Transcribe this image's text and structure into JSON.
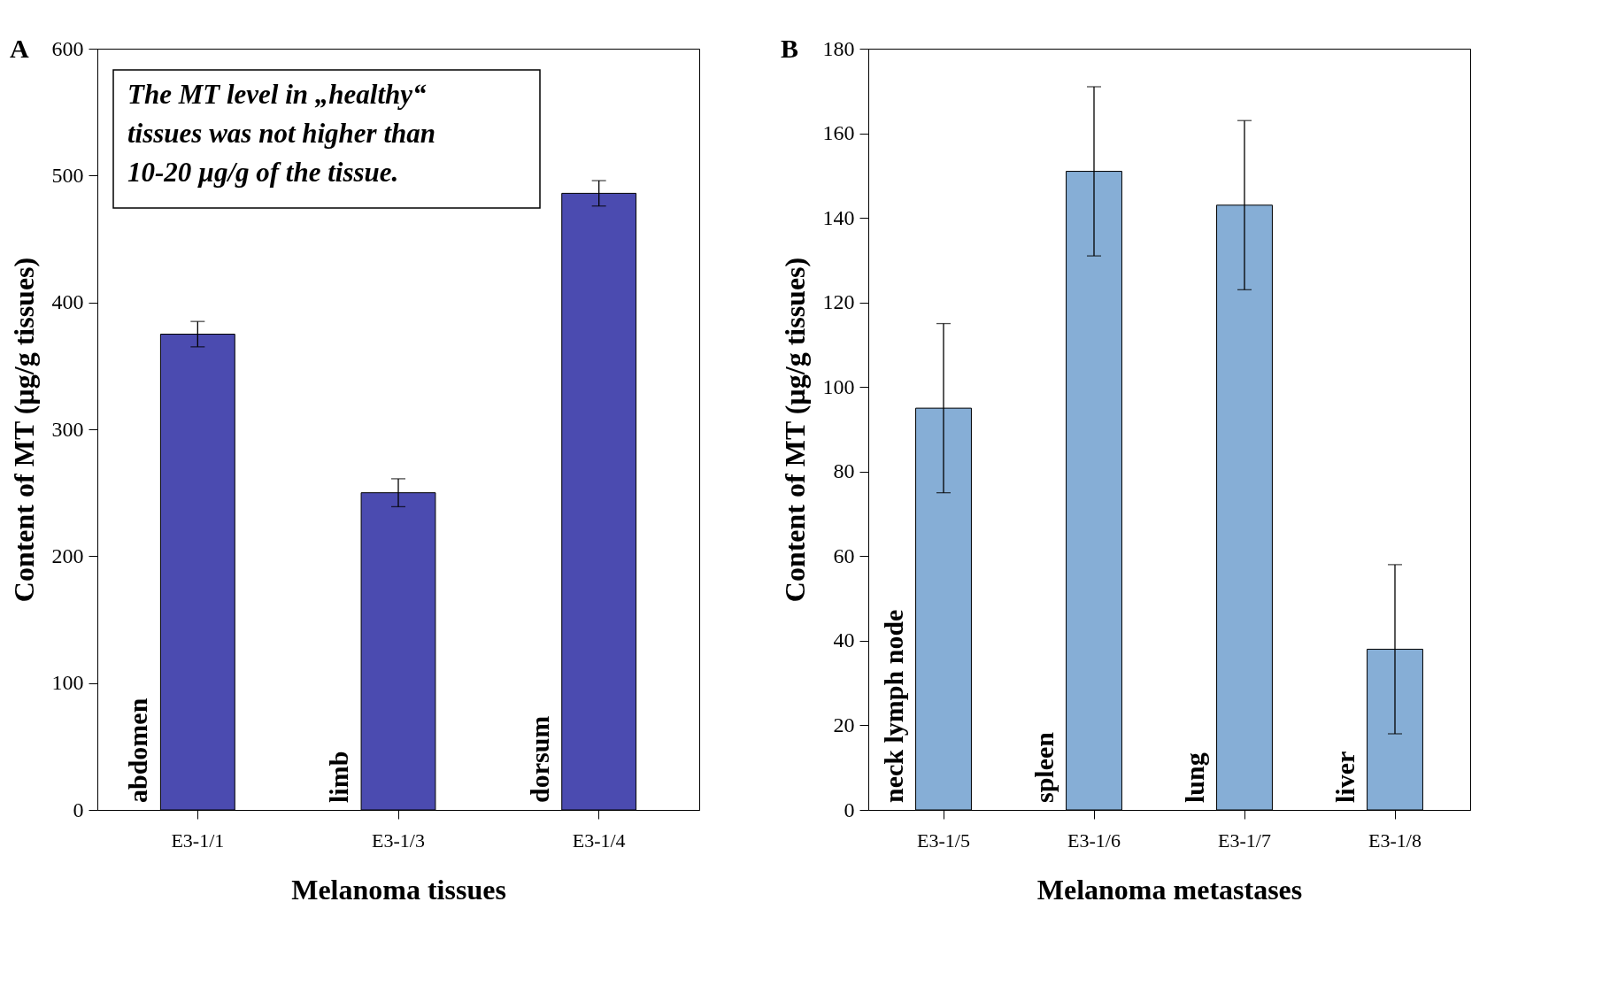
{
  "chart_data": [
    {
      "type": "bar",
      "title": "A",
      "xlabel": "Melanoma tissues",
      "ylabel": "Content of MT (µg/g tissues)",
      "categories": [
        "E3-1/1",
        "E3-1/3",
        "E3-1/4"
      ],
      "values": [
        375,
        250,
        486
      ],
      "errors": [
        10,
        11,
        10
      ],
      "color": "#4b4bb0",
      "ylim": [
        0,
        600
      ],
      "yticks": [
        0,
        100,
        200,
        300,
        400,
        500,
        600
      ],
      "grid": false,
      "annotations": [
        "The MT level in „healthy“\ntissues was not higher than\n10-20 µg/g of the tissue.",
        {
          "text": "abdomen",
          "x": "E3-1/1",
          "y": 0
        },
        {
          "text": "limb",
          "x": "E3-1/3",
          "y": 0
        },
        {
          "text": "dorsum",
          "x": "E3-1/4",
          "y": 0
        }
      ]
    },
    {
      "type": "bar",
      "title": "B",
      "xlabel": "Melanoma metastases",
      "ylabel": "Content of MT (µg/g tissues)",
      "categories": [
        "E3-1/5",
        "E3-1/6",
        "E3-1/7",
        "E3-1/8"
      ],
      "values": [
        95,
        151,
        143,
        38
      ],
      "errors": [
        20,
        20,
        20,
        20
      ],
      "color": "#86aed6",
      "ylim": [
        0,
        180
      ],
      "yticks": [
        0,
        20,
        40,
        60,
        80,
        100,
        120,
        140,
        160,
        180
      ],
      "grid": false,
      "annotations": [
        {
          "text": "neck lymph node",
          "x": "E3-1/5",
          "y": 0
        },
        {
          "text": "spleen",
          "x": "E3-1/6",
          "y": 0
        },
        {
          "text": "lung",
          "x": "E3-1/7",
          "y": 0
        },
        {
          "text": "liver",
          "x": "E3-1/8",
          "y": 0
        }
      ]
    }
  ]
}
